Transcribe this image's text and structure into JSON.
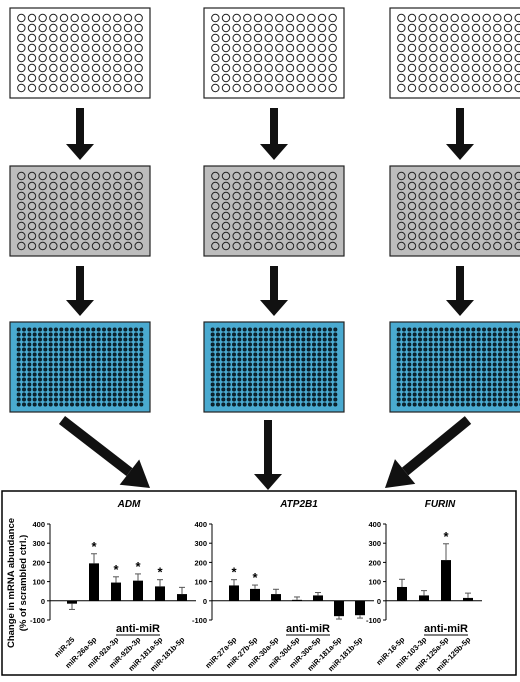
{
  "workflow": {
    "columns": [
      {
        "id": "left"
      },
      {
        "id": "middle"
      },
      {
        "id": "right"
      }
    ],
    "colors": {
      "plate1_fill": "#ffffff",
      "plate2_fill": "#bdbdbd",
      "plate3_fill": "#4aaad0",
      "plate3_well": "#0d2733",
      "arrow": "#111111",
      "bar": "#000000"
    }
  },
  "y_axis_label_line1": "Change in mRNA abundance",
  "y_axis_label_line2": "(% of scrambled ctrl.)",
  "chart_data": [
    {
      "type": "bar",
      "title": "ADM",
      "group_label": "anti-miR",
      "ylim": [
        -100,
        400
      ],
      "yticks": [
        -100,
        0,
        100,
        200,
        300,
        400
      ],
      "categories": [
        "miR-25",
        "miR-26a-5p",
        "miR-92a-3p",
        "miR-92b-3p",
        "miR-181a-5p",
        "miR-181b-5p"
      ],
      "values": [
        -15,
        195,
        95,
        105,
        75,
        35
      ],
      "errors": [
        30,
        50,
        30,
        35,
        35,
        35
      ],
      "significant": [
        false,
        true,
        true,
        true,
        true,
        false
      ]
    },
    {
      "type": "bar",
      "title": "ATP2B1",
      "group_label": "anti-miR",
      "ylim": [
        -100,
        400
      ],
      "yticks": [
        -100,
        0,
        100,
        200,
        300,
        400
      ],
      "categories": [
        "miR-27a-5p",
        "miR-27b-5p",
        "miR-30a-5p",
        "miR-30d-5p",
        "miR-30e-5p",
        "miR-181a-5p",
        "miR-181b-5p"
      ],
      "values": [
        80,
        62,
        35,
        5,
        28,
        -80,
        -75
      ],
      "errors": [
        30,
        20,
        25,
        15,
        15,
        15,
        15
      ],
      "significant": [
        true,
        true,
        false,
        false,
        false,
        true,
        true
      ]
    },
    {
      "type": "bar",
      "title": "FURIN",
      "group_label": "anti-miR",
      "ylim": [
        -100,
        400
      ],
      "yticks": [
        -100,
        0,
        100,
        200,
        300,
        400
      ],
      "categories": [
        "miR-16-5p",
        "miR-103-3p",
        "miR-125a-5p",
        "miR-125b-5p"
      ],
      "values": [
        72,
        28,
        212,
        15
      ],
      "errors": [
        40,
        25,
        85,
        25
      ],
      "significant": [
        false,
        false,
        true,
        false
      ]
    }
  ]
}
